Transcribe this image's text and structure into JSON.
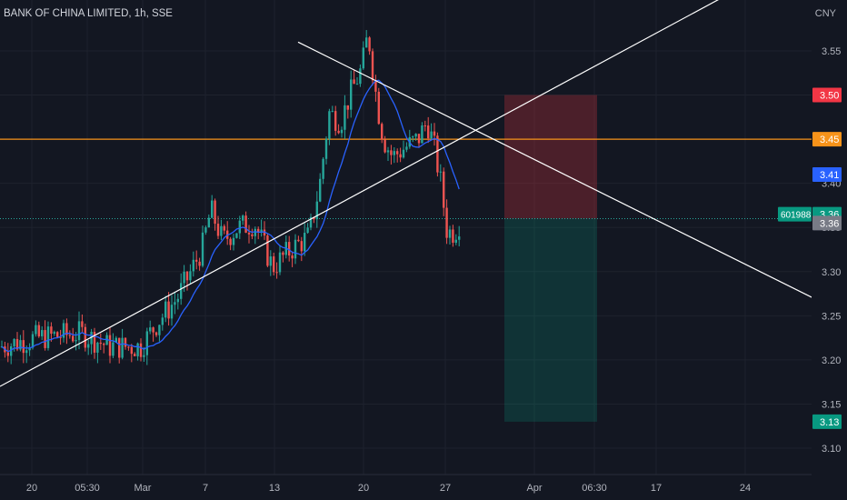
{
  "chart_title": "BANK OF CHINA LIMITED, 1h, SSE",
  "currency": "CNY",
  "colors": {
    "background": "#131722",
    "up": "#26a69a",
    "down": "#ef5350",
    "ma": "#2962ff",
    "level_line": "#f7931a",
    "trend_line": "#ffffff",
    "stop_zone": "#f23645",
    "target_zone": "#089981"
  },
  "chart_data": {
    "type": "candlestick",
    "title": "BANK OF CHINA LIMITED, 1h, SSE",
    "ylim": [
      3.06,
      3.63
    ],
    "y_ticks": [
      "3.55",
      "3.50",
      "3.45",
      "3.40",
      "3.35",
      "3.30",
      "3.25",
      "3.20",
      "3.15",
      "3.10"
    ],
    "x_ticks": [
      "20",
      "05:30",
      "Mar",
      "7",
      "13",
      "20",
      "27",
      "Apr",
      "06:30",
      "17",
      "24"
    ],
    "grid": true,
    "horizontal_level": 3.45,
    "price_labels": [
      {
        "value": 3.5,
        "text": "3.50",
        "color": "#f23645"
      },
      {
        "value": 3.45,
        "text": "3.45",
        "color": "#f7931a"
      },
      {
        "value": 3.41,
        "text": "3.41",
        "color": "#2962ff"
      },
      {
        "value": 3.365,
        "text": "3.36",
        "color": "#089981"
      },
      {
        "value": 3.355,
        "text": "3.36",
        "color": "#787b86"
      },
      {
        "value": 3.13,
        "text": "3.13",
        "color": "#089981"
      }
    ],
    "symbol_label": "601988",
    "position": {
      "entry": 3.36,
      "stop": 3.5,
      "target": 3.13
    }
  }
}
